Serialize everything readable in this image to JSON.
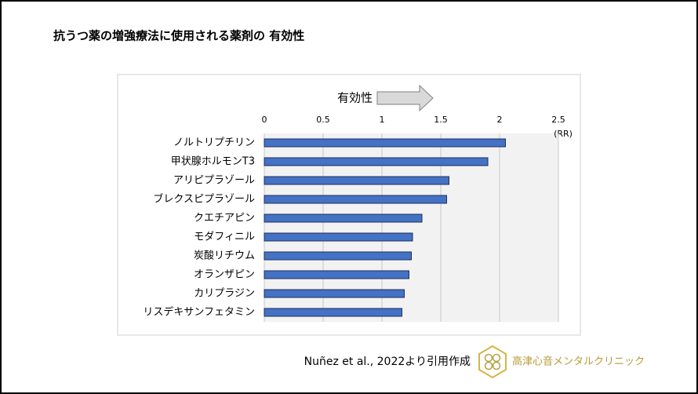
{
  "chart_data": {
    "type": "hbar",
    "title": "抗うつ薬の増強療法に使用される薬剤の 有効性",
    "annotation": "有効性",
    "x_axis_label": "(RR)",
    "categories": [
      "ノルトリプチリン",
      "甲状腺ホルモンT3",
      "アリピプラゾール",
      "ブレクスピプラゾール",
      "クエチアピン",
      "モダフィニル",
      "炭酸リチウム",
      "オランザピン",
      "カリプラジン",
      "リスデキサンフェタミン"
    ],
    "values": [
      2.05,
      1.9,
      1.57,
      1.55,
      1.34,
      1.26,
      1.25,
      1.23,
      1.19,
      1.17
    ],
    "color": "#4472c4",
    "xlim": [
      0,
      2.5
    ],
    "xticks": [
      0,
      0.5,
      1,
      1.5,
      2,
      2.5
    ],
    "grid": true
  },
  "footer": {
    "source": "Nuñez et al., 2022より引用作成",
    "clinic": "高津心音メンタルクリニック"
  }
}
